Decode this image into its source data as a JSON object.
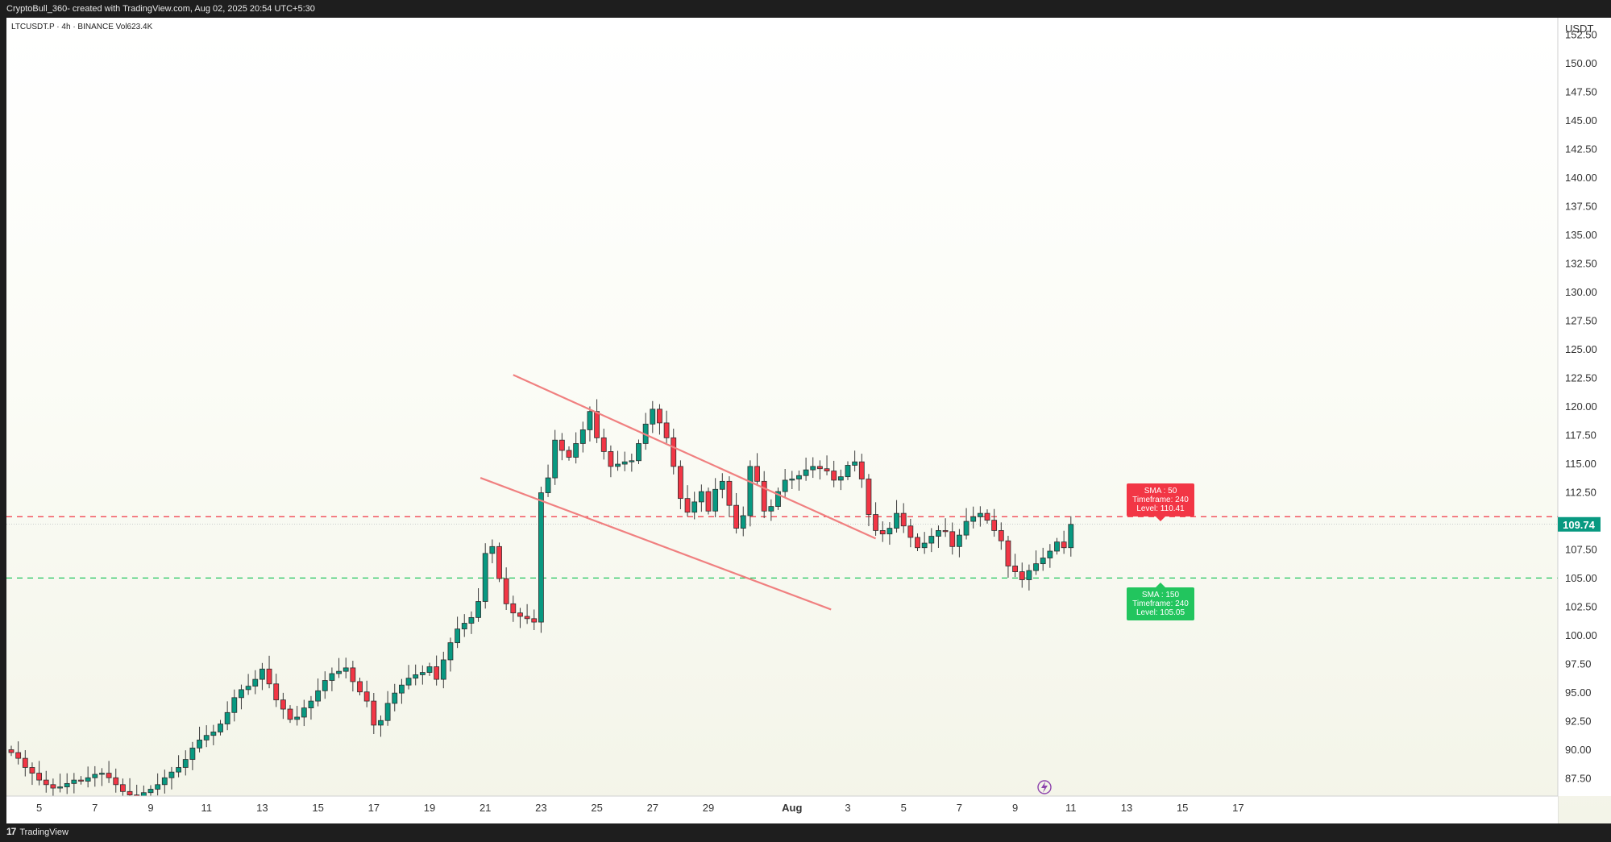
{
  "header": {
    "caption": "CryptoBull_360- created with TradingView.com, Aug 02, 2025 20:54 UTC+5:30"
  },
  "chart_header": {
    "symbol_line": "LTCUSDT.P · 4h · BINANCE  Vol623.4K"
  },
  "footer": {
    "brand": "TradingView",
    "brand_mark": "17"
  },
  "colors": {
    "up": "#089981",
    "down": "#f23645",
    "resistance": "#f23645",
    "support": "#22c55e",
    "channel": "#f08080",
    "price_badge": "#089981"
  },
  "chart_data": {
    "type": "candlestick",
    "symbol": "LTCUSDT.P",
    "timeframe": "4h",
    "exchange": "BINANCE",
    "currency": "USDT",
    "y_ticks": [
      "152.50",
      "150.00",
      "147.50",
      "145.00",
      "142.50",
      "140.00",
      "137.50",
      "135.00",
      "132.50",
      "130.00",
      "127.50",
      "125.00",
      "122.50",
      "120.00",
      "117.50",
      "115.00",
      "112.50",
      "110.00",
      "107.50",
      "105.00",
      "102.50",
      "100.00",
      "97.50",
      "95.00",
      "92.50",
      "90.00",
      "87.50"
    ],
    "ylim": [
      86.0,
      154.0
    ],
    "x_ticks": [
      {
        "label": "5",
        "t": 4
      },
      {
        "label": "7",
        "t": 12
      },
      {
        "label": "9",
        "t": 20
      },
      {
        "label": "11",
        "t": 28
      },
      {
        "label": "13",
        "t": 36
      },
      {
        "label": "15",
        "t": 44
      },
      {
        "label": "17",
        "t": 52
      },
      {
        "label": "19",
        "t": 60
      },
      {
        "label": "21",
        "t": 68
      },
      {
        "label": "23",
        "t": 76
      },
      {
        "label": "25",
        "t": 84
      },
      {
        "label": "27",
        "t": 92
      },
      {
        "label": "29",
        "t": 100
      },
      {
        "label": "Aug",
        "t": 112
      },
      {
        "label": "3",
        "t": 120
      },
      {
        "label": "5",
        "t": 128
      },
      {
        "label": "7",
        "t": 136
      },
      {
        "label": "9",
        "t": 144
      },
      {
        "label": "11",
        "t": 152
      },
      {
        "label": "13",
        "t": 160
      },
      {
        "label": "15",
        "t": 168
      },
      {
        "label": "17",
        "t": 176
      }
    ],
    "last_price": "109.74",
    "closes": [
      89.8,
      89.3,
      88.5,
      88.0,
      87.4,
      87.0,
      86.7,
      86.8,
      87.1,
      87.4,
      87.3,
      87.6,
      87.9,
      88.0,
      87.6,
      87.0,
      86.4,
      86.1,
      86.0,
      86.3,
      86.6,
      87.0,
      87.6,
      88.1,
      88.5,
      89.2,
      90.2,
      90.9,
      91.3,
      91.6,
      92.3,
      93.3,
      94.6,
      95.3,
      95.6,
      96.2,
      97.1,
      95.8,
      94.4,
      93.6,
      92.7,
      92.9,
      93.7,
      94.3,
      95.2,
      96.1,
      96.7,
      96.9,
      97.2,
      96.0,
      95.1,
      94.3,
      92.2,
      92.6,
      94.1,
      95.0,
      95.7,
      96.3,
      96.6,
      96.8,
      97.3,
      96.2,
      97.9,
      99.4,
      100.6,
      101.1,
      101.6,
      103.0,
      107.2,
      107.8,
      105.0,
      102.8,
      102.0,
      101.7,
      101.5,
      101.2,
      112.5,
      113.8,
      117.1,
      116.2,
      115.6,
      116.8,
      118.0,
      119.6,
      117.3,
      116.1,
      114.8,
      115.0,
      115.2,
      115.3,
      116.8,
      118.5,
      119.8,
      118.6,
      117.3,
      114.8,
      112.0,
      110.8,
      111.7,
      112.6,
      110.9,
      112.8,
      113.5,
      111.4,
      109.4,
      110.5,
      114.8,
      113.5,
      110.9,
      111.3,
      112.6,
      113.6,
      113.7,
      114.0,
      114.5,
      114.8,
      114.6,
      114.4,
      113.6,
      113.9,
      114.9,
      115.2,
      113.7,
      110.6,
      109.2,
      108.9,
      109.4,
      110.7,
      109.6,
      108.6,
      107.7,
      108.1,
      108.7,
      109.2,
      109.1,
      107.8,
      108.8,
      110.0,
      110.4,
      110.7,
      110.1,
      109.2,
      108.3,
      106.1,
      105.6,
      104.9,
      105.7,
      106.3,
      106.8,
      107.4,
      108.2,
      107.7,
      109.74
    ],
    "resistance": {
      "label_line1": "SMA : 50",
      "label_line2": "Timeframe: 240",
      "label_line3": "Level: 110.41",
      "level": 110.41
    },
    "support": {
      "label_line1": "SMA : 150",
      "label_line2": "Timeframe: 240",
      "label_line3": "Level: 105.05",
      "level": 105.05
    },
    "channel_upper": {
      "t1": 72.0,
      "p1": 122.8,
      "t2": 124.0,
      "p2": 108.5
    },
    "channel_lower": {
      "t1": 67.3,
      "p1": 113.8,
      "t2": 117.6,
      "p2": 102.3
    }
  }
}
